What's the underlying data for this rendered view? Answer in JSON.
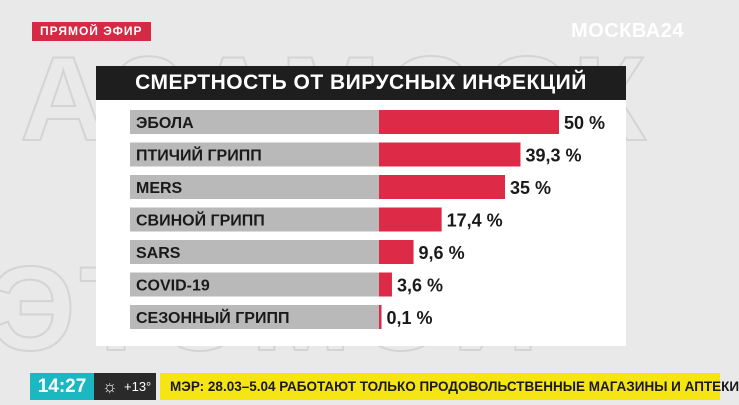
{
  "live_badge": "ПРЯМОЙ ЭФИР",
  "channel_logo": "МОСКВА24",
  "chart_data": {
    "type": "bar",
    "orientation": "horizontal",
    "title": "СМЕРТНОСТЬ ОТ ВИРУСНЫХ ИНФЕКЦИЙ",
    "categories": [
      "ЭБОЛА",
      "ПТИЧИЙ ГРИПП",
      "MERS",
      "СВИНОЙ ГРИПП",
      "SARS",
      "COVID-19",
      "СЕЗОННЫЙ ГРИПП"
    ],
    "values": [
      50,
      39.3,
      35,
      17.4,
      9.6,
      3.6,
      0.1
    ],
    "value_labels": [
      "50 %",
      "39,3 %",
      "35 %",
      "17,4 %",
      "9,6 %",
      "3,6 %",
      "0,1 %"
    ],
    "xlim": [
      0,
      50
    ],
    "bar_color": "#dc2a47",
    "label_bg_color": "#b9b9b9",
    "grid": false,
    "legend": "none"
  },
  "bottom_bar": {
    "time": "14:27",
    "weather_icon": "sun-icon",
    "temperature": "+13°",
    "ticker": "МЭР: 28.03–5.04 РАБОТАЮТ ТОЛЬКО ПРОДОВОЛЬСТВЕННЫЕ МАГАЗИНЫ И АПТЕКИ"
  },
  "colors": {
    "accent_red": "#d42a43",
    "ticker_yellow": "#f5e515",
    "time_teal": "#1bb8c1",
    "title_bg": "#1e1e1e"
  }
}
